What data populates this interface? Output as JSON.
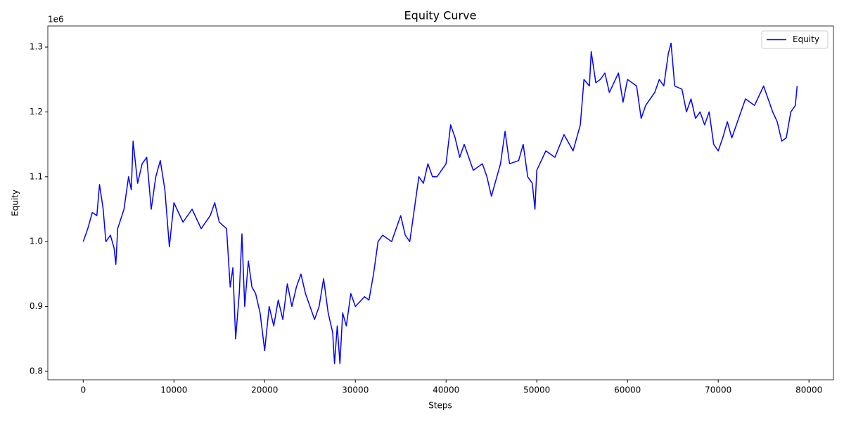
{
  "chart_data": {
    "type": "line",
    "title": "Equity Curve",
    "x_label": "Steps",
    "y_label": "Equity",
    "y_offset_label": "1e6",
    "legend_position": "upper right",
    "x": [
      0,
      500,
      1000,
      1500,
      1800,
      2200,
      2500,
      3000,
      3400,
      3600,
      3800,
      4500,
      5000,
      5300,
      5500,
      6000,
      6500,
      7000,
      7500,
      8000,
      8500,
      9000,
      9500,
      10000,
      11000,
      12000,
      13000,
      14000,
      14500,
      15000,
      15800,
      16200,
      16500,
      16800,
      17200,
      17500,
      17800,
      18200,
      18600,
      19000,
      19500,
      20000,
      20500,
      21000,
      21500,
      22000,
      22500,
      23000,
      23500,
      24000,
      24500,
      25000,
      25500,
      26000,
      26500,
      27000,
      27500,
      27700,
      28000,
      28300,
      28600,
      29000,
      29500,
      30000,
      31000,
      31500,
      32000,
      32500,
      33000,
      34000,
      35000,
      35500,
      36000,
      36500,
      37000,
      37500,
      38000,
      38500,
      39000,
      40000,
      40500,
      41000,
      41500,
      42000,
      43000,
      44000,
      44500,
      45000,
      46000,
      46500,
      47000,
      48000,
      48500,
      49000,
      49500,
      49800,
      50000,
      51000,
      52000,
      53000,
      54000,
      54800,
      55200,
      55800,
      56000,
      56500,
      57000,
      57500,
      58000,
      59000,
      59500,
      60000,
      61000,
      61500,
      62000,
      63000,
      63500,
      64000,
      64500,
      64800,
      65200,
      66000,
      66500,
      67000,
      67500,
      68000,
      68500,
      69000,
      69500,
      70000,
      70500,
      71000,
      71500,
      72000,
      73000,
      74000,
      75000,
      76000,
      76500,
      77000,
      77500,
      78000,
      78500,
      78700
    ],
    "series": [
      {
        "name": "Equity",
        "color": "#0000ff",
        "values": [
          1.0,
          1.02,
          1.045,
          1.04,
          1.088,
          1.05,
          1.0,
          1.01,
          0.99,
          0.965,
          1.02,
          1.05,
          1.1,
          1.08,
          1.155,
          1.09,
          1.12,
          1.13,
          1.05,
          1.1,
          1.125,
          1.08,
          0.992,
          1.06,
          1.03,
          1.05,
          1.02,
          1.04,
          1.06,
          1.03,
          1.02,
          0.93,
          0.96,
          0.85,
          0.92,
          1.012,
          0.9,
          0.97,
          0.93,
          0.92,
          0.89,
          0.832,
          0.9,
          0.87,
          0.91,
          0.88,
          0.935,
          0.9,
          0.93,
          0.95,
          0.92,
          0.9,
          0.88,
          0.9,
          0.943,
          0.89,
          0.86,
          0.812,
          0.87,
          0.812,
          0.89,
          0.87,
          0.92,
          0.9,
          0.915,
          0.91,
          0.95,
          1.0,
          1.01,
          1.0,
          1.04,
          1.01,
          1.0,
          1.05,
          1.1,
          1.09,
          1.12,
          1.1,
          1.1,
          1.12,
          1.18,
          1.16,
          1.13,
          1.15,
          1.11,
          1.12,
          1.1,
          1.07,
          1.12,
          1.17,
          1.12,
          1.125,
          1.15,
          1.1,
          1.09,
          1.05,
          1.11,
          1.14,
          1.13,
          1.165,
          1.14,
          1.18,
          1.25,
          1.24,
          1.293,
          1.245,
          1.25,
          1.26,
          1.23,
          1.26,
          1.215,
          1.25,
          1.24,
          1.19,
          1.21,
          1.23,
          1.25,
          1.24,
          1.29,
          1.306,
          1.24,
          1.235,
          1.2,
          1.22,
          1.19,
          1.2,
          1.18,
          1.2,
          1.15,
          1.14,
          1.16,
          1.185,
          1.16,
          1.18,
          1.22,
          1.21,
          1.24,
          1.2,
          1.185,
          1.155,
          1.16,
          1.2,
          1.21,
          1.24
        ]
      }
    ],
    "xlim": [
      -3900,
      82700
    ],
    "xticks": [
      0,
      10000,
      20000,
      30000,
      40000,
      50000,
      60000,
      70000,
      80000
    ],
    "ylim": [
      0.787,
      1.3325
    ],
    "yticks": [
      0.8,
      0.9,
      {
        "value": 1,
        "label": "1.0"
      },
      1.1,
      1.2,
      1.3
    ]
  }
}
